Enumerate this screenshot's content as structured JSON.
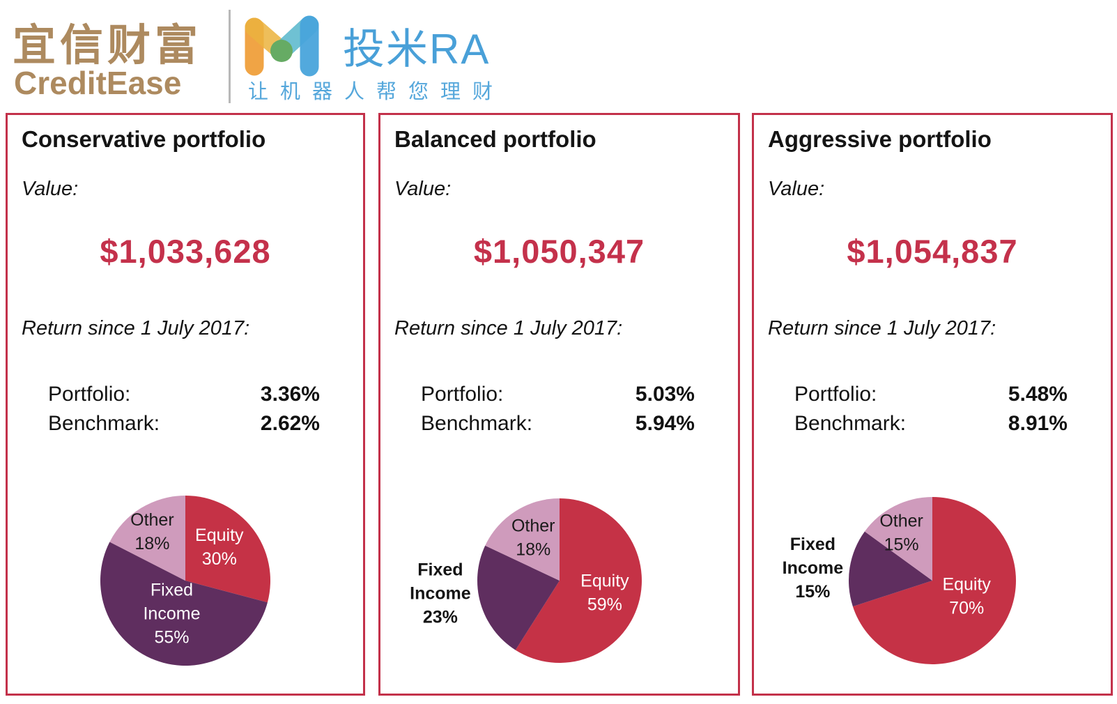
{
  "header": {
    "brand_cn": "宜信财富",
    "brand_en": "CreditEase",
    "product_name": "投米RA",
    "product_tagline": "让机器人帮您理财"
  },
  "colors": {
    "accent_red": "#C4314B",
    "panel_border_red": "#C3314A",
    "brand_tan": "#AD8A5F",
    "product_blue": "#49A0D8",
    "pie_equity_red": "#C53246",
    "pie_fixed_income_purple": "#5F2E5F",
    "pie_other_pink": "#CF9BBC"
  },
  "panels": [
    {
      "title": "Conservative portfolio",
      "value_label": "Value:",
      "value": "$1,033,628",
      "return_label": "Return since 1 July 2017:",
      "rows": [
        {
          "label": "Portfolio:",
          "value": "3.36%"
        },
        {
          "label": "Benchmark:",
          "value": "2.62%"
        }
      ]
    },
    {
      "title": "Balanced portfolio",
      "value_label": "Value:",
      "value": "$1,050,347",
      "return_label": "Return since 1 July 2017:",
      "rows": [
        {
          "label": "Portfolio:",
          "value": "5.03%"
        },
        {
          "label": "Benchmark:",
          "value": "5.94%"
        }
      ]
    },
    {
      "title": "Aggressive portfolio",
      "value_label": "Value:",
      "value": "$1,054,837",
      "return_label": "Return since 1 July 2017:",
      "rows": [
        {
          "label": "Portfolio:",
          "value": "5.48%"
        },
        {
          "label": "Benchmark:",
          "value": "8.91%"
        }
      ]
    }
  ],
  "chart_data": [
    {
      "type": "pie",
      "title": "Conservative portfolio allocation",
      "legend_position": "inside",
      "slices": [
        {
          "label": "Equity",
          "value": 30,
          "display": "30%",
          "color": "#C53246",
          "text_color": "#ffffff",
          "bold": false,
          "lines": [
            "Equity",
            "30%"
          ],
          "label_pos": [
            0.4,
            -0.4
          ]
        },
        {
          "label": "Fixed Income",
          "value": 55,
          "display": "55%",
          "color": "#5F2E5F",
          "text_color": "#ffffff",
          "bold": false,
          "lines": [
            "Fixed",
            "Income",
            "55%"
          ],
          "label_pos": [
            -0.16,
            0.38
          ]
        },
        {
          "label": "Other",
          "value": 18,
          "display": "18%",
          "color": "#CF9BBC",
          "text_color": "#1a1a1a",
          "bold": false,
          "lines": [
            "Other",
            "18%"
          ],
          "label_pos": [
            -0.39,
            -0.58
          ]
        }
      ]
    },
    {
      "type": "pie",
      "title": "Balanced portfolio allocation",
      "legend_position": "inside-and-left",
      "slices": [
        {
          "label": "Equity",
          "value": 59,
          "display": "59%",
          "color": "#C53246",
          "text_color": "#ffffff",
          "bold": false,
          "lines": [
            "Equity",
            "59%"
          ],
          "label_pos": [
            0.55,
            0.14
          ]
        },
        {
          "label": "Fixed Income",
          "value": 23,
          "display": "23%",
          "color": "#5F2E5F",
          "text_color": "#141414",
          "bold": true,
          "lines": [
            "Fixed",
            "Income",
            "23%"
          ],
          "label_pos": [
            -1.45,
            0.15
          ]
        },
        {
          "label": "Other",
          "value": 18,
          "display": "18%",
          "color": "#CF9BBC",
          "text_color": "#1a1a1a",
          "bold": false,
          "lines": [
            "Other",
            "18%"
          ],
          "label_pos": [
            -0.32,
            -0.53
          ]
        }
      ]
    },
    {
      "type": "pie",
      "title": "Aggressive portfolio allocation",
      "legend_position": "inside-and-left",
      "slices": [
        {
          "label": "Equity",
          "value": 70,
          "display": "70%",
          "color": "#C53246",
          "text_color": "#ffffff",
          "bold": false,
          "lines": [
            "Equity",
            "70%"
          ],
          "label_pos": [
            0.41,
            0.18
          ]
        },
        {
          "label": "Fixed Income",
          "value": 15,
          "display": "15%",
          "color": "#5F2E5F",
          "text_color": "#141414",
          "bold": true,
          "lines": [
            "Fixed",
            "Income",
            "15%"
          ],
          "label_pos": [
            -1.43,
            -0.16
          ]
        },
        {
          "label": "Other",
          "value": 15,
          "display": "15%",
          "color": "#CF9BBC",
          "text_color": "#1a1a1a",
          "bold": false,
          "lines": [
            "Other",
            "15%"
          ],
          "label_pos": [
            -0.37,
            -0.58
          ]
        }
      ]
    }
  ]
}
